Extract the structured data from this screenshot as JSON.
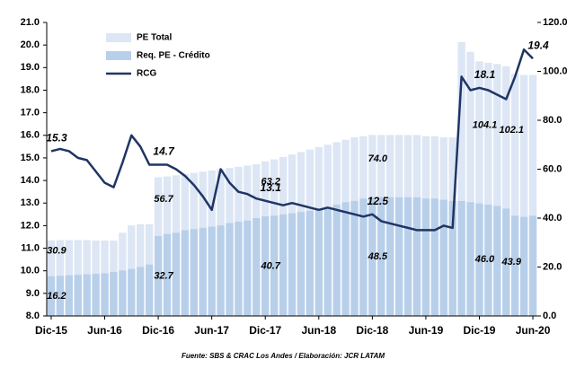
{
  "chart_data": {
    "type": "bar",
    "source": "Fuente: SBS & CRAC Los Andes / Elaboración: JCR LATAM",
    "categories": [
      "Dic-15",
      null,
      null,
      null,
      null,
      null,
      "Jun-16",
      null,
      null,
      null,
      null,
      null,
      "Dic-16",
      null,
      null,
      null,
      null,
      null,
      "Jun-17",
      null,
      null,
      null,
      null,
      null,
      "Dic-17",
      null,
      null,
      null,
      null,
      null,
      "Jun-18",
      null,
      null,
      null,
      null,
      null,
      "Dic-18",
      null,
      null,
      null,
      null,
      null,
      "Jun-19",
      null,
      null,
      null,
      null,
      null,
      "Dic-19",
      null,
      null,
      null,
      null,
      null,
      "Jun-20"
    ],
    "ylim": [
      8,
      21
    ],
    "yticks": [
      {
        "value": 8,
        "label": "8.0"
      },
      {
        "value": 9,
        "label": "9.0"
      },
      {
        "value": 10,
        "label": "10.0"
      },
      {
        "value": 11,
        "label": "11.0"
      },
      {
        "value": 12,
        "label": "12.0"
      },
      {
        "value": 13,
        "label": "13.0"
      },
      {
        "value": 14,
        "label": "14.0"
      },
      {
        "value": 15,
        "label": "15.0"
      },
      {
        "value": 16,
        "label": "16.0"
      },
      {
        "value": 17,
        "label": "17.0"
      },
      {
        "value": 18,
        "label": "18.0"
      },
      {
        "value": 19,
        "label": "19.0"
      },
      {
        "value": 20,
        "label": "20.0"
      },
      {
        "value": 21,
        "label": "21.0"
      }
    ],
    "y2lim": [
      0,
      120
    ],
    "y2ticks": [
      {
        "value": 0,
        "label": "0.0"
      },
      {
        "value": 20,
        "label": "20.0"
      },
      {
        "value": 40,
        "label": "40.0"
      },
      {
        "value": 60,
        "label": "60.0"
      },
      {
        "value": 80,
        "label": "80.0"
      },
      {
        "value": 100,
        "label": "100.0"
      },
      {
        "value": 120,
        "label": "120.0"
      }
    ],
    "series": [
      {
        "name": "PE Total",
        "type": "bar",
        "axis": "y2",
        "color": "#dce6f4",
        "values": [
          30.9,
          31.0,
          31.0,
          31.0,
          31.0,
          30.8,
          30.8,
          30.8,
          34.0,
          37.0,
          37.5,
          37.5,
          56.7,
          57.0,
          57.5,
          58.0,
          58.5,
          59.0,
          59.5,
          60.0,
          60.5,
          61.0,
          61.5,
          62.0,
          63.2,
          64.0,
          65.0,
          66.0,
          67.0,
          68.0,
          69.0,
          70.0,
          71.0,
          72.0,
          73.0,
          73.5,
          74.0,
          74.0,
          74.0,
          74.0,
          74.0,
          74.0,
          73.5,
          73.5,
          73.0,
          73.0,
          112.0,
          108.0,
          104.1,
          103.5,
          103.0,
          102.1,
          99.0,
          98.5,
          98.5
        ],
        "value_labels": [
          "30.9",
          null,
          null,
          null,
          null,
          null,
          null,
          null,
          null,
          null,
          null,
          null,
          "56.7",
          null,
          null,
          null,
          null,
          null,
          null,
          null,
          null,
          null,
          null,
          null,
          "63.2",
          null,
          null,
          null,
          null,
          null,
          null,
          null,
          null,
          null,
          null,
          null,
          "74.0",
          null,
          null,
          null,
          null,
          null,
          null,
          null,
          null,
          null,
          null,
          null,
          "104.1",
          null,
          null,
          "102.1",
          null,
          null,
          null
        ]
      },
      {
        "name": "Req. PE - Crédito",
        "type": "bar",
        "axis": "y2",
        "color": "#b8cfea",
        "values": [
          16.2,
          16.4,
          16.6,
          16.8,
          17.0,
          17.2,
          17.4,
          18.0,
          18.6,
          19.2,
          20.0,
          21.0,
          32.7,
          33.5,
          34.0,
          35.0,
          35.5,
          36.0,
          36.5,
          37.0,
          38.0,
          38.5,
          39.0,
          40.0,
          40.7,
          41.0,
          41.5,
          42.0,
          42.5,
          43.0,
          43.5,
          44.5,
          45.5,
          46.5,
          47.0,
          48.0,
          48.5,
          48.5,
          48.5,
          48.5,
          48.5,
          48.5,
          48.0,
          48.0,
          47.5,
          47.0,
          47.0,
          46.5,
          46.0,
          45.5,
          45.0,
          43.9,
          41.0,
          40.5,
          41.0
        ],
        "value_labels": [
          "16.2",
          null,
          null,
          null,
          null,
          null,
          null,
          null,
          null,
          null,
          null,
          null,
          "32.7",
          null,
          null,
          null,
          null,
          null,
          null,
          null,
          null,
          null,
          null,
          null,
          "40.7",
          null,
          null,
          null,
          null,
          null,
          null,
          null,
          null,
          null,
          null,
          null,
          "48.5",
          null,
          null,
          null,
          null,
          null,
          null,
          null,
          null,
          null,
          null,
          null,
          "46.0",
          null,
          null,
          "43.9",
          null,
          null,
          null
        ]
      },
      {
        "name": "RCG",
        "type": "line",
        "axis": "y",
        "color": "#1f3564",
        "values": [
          15.3,
          15.4,
          15.3,
          15.0,
          14.9,
          14.4,
          13.9,
          13.7,
          14.8,
          16.0,
          15.5,
          14.7,
          14.7,
          14.7,
          14.5,
          14.2,
          13.8,
          13.3,
          12.7,
          14.5,
          13.9,
          13.5,
          13.4,
          13.2,
          13.1,
          13.0,
          12.9,
          13.0,
          12.9,
          12.8,
          12.7,
          12.8,
          12.7,
          12.6,
          12.5,
          12.4,
          12.5,
          12.2,
          12.1,
          12.0,
          11.9,
          11.8,
          11.8,
          11.8,
          12.0,
          11.9,
          18.6,
          18.0,
          18.1,
          18.0,
          17.8,
          17.6,
          18.6,
          19.8,
          19.4
        ],
        "value_labels": [
          "15.3",
          null,
          null,
          null,
          null,
          null,
          null,
          null,
          null,
          null,
          null,
          null,
          "14.7",
          null,
          null,
          null,
          null,
          null,
          null,
          null,
          null,
          null,
          null,
          null,
          "13.1",
          null,
          null,
          null,
          null,
          null,
          null,
          null,
          null,
          null,
          null,
          null,
          "12.5",
          null,
          null,
          null,
          null,
          null,
          null,
          null,
          null,
          null,
          null,
          null,
          "18.1",
          null,
          null,
          null,
          null,
          null,
          "19.4"
        ]
      }
    ]
  }
}
